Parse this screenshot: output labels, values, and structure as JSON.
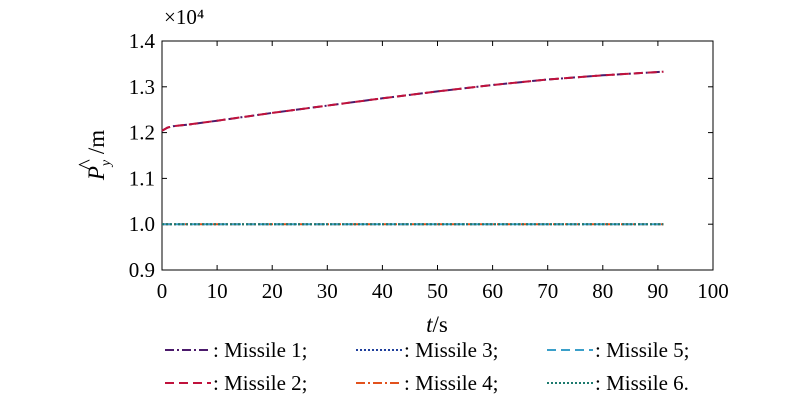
{
  "chart_data": {
    "type": "line",
    "title": "",
    "xlabel": "t/s",
    "ylabel": "P̂y/m",
    "y_multiplier": "×10⁴",
    "xlim": [
      0,
      100
    ],
    "ylim": [
      0.9,
      1.4
    ],
    "xticks": [
      0,
      10,
      20,
      30,
      40,
      50,
      60,
      70,
      80,
      90,
      100
    ],
    "yticks": [
      0.9,
      1.0,
      1.1,
      1.2,
      1.3,
      1.4
    ],
    "ytick_labels": [
      "0.9",
      "1.0",
      "1.1",
      "1.2",
      "1.3",
      "1.4"
    ],
    "grid": false,
    "legend_position": "bottom",
    "x": [
      0,
      1,
      2,
      5,
      10,
      20,
      30,
      40,
      50,
      60,
      70,
      80,
      91
    ],
    "series": [
      {
        "name": "Missile 1;",
        "color": "#4b1a6b",
        "style": "dash-dot",
        "values": [
          1.204,
          1.211,
          1.214,
          1.218,
          1.226,
          1.243,
          1.259,
          1.275,
          1.29,
          1.304,
          1.316,
          1.325,
          1.333
        ]
      },
      {
        "name": "Missile 2;",
        "color": "#c0123c",
        "style": "dash",
        "values": [
          1.204,
          1.211,
          1.214,
          1.218,
          1.226,
          1.243,
          1.259,
          1.275,
          1.29,
          1.304,
          1.316,
          1.325,
          1.333
        ]
      },
      {
        "name": "Missile 3;",
        "color": "#1f3f9c",
        "style": "dot",
        "values": [
          1.0,
          1.0,
          1.0,
          1.0,
          1.0,
          1.0,
          1.0,
          1.0,
          1.0,
          1.0,
          1.0,
          1.0,
          1.0
        ]
      },
      {
        "name": "Missile 4;",
        "color": "#e2521d",
        "style": "dash-dot",
        "values": [
          1.0,
          1.0,
          1.0,
          1.0,
          1.0,
          1.0,
          1.0,
          1.0,
          1.0,
          1.0,
          1.0,
          1.0,
          1.0
        ]
      },
      {
        "name": "Missile 5;",
        "color": "#3a9fc9",
        "style": "dash",
        "values": [
          1.0,
          1.0,
          1.0,
          1.0,
          1.0,
          1.0,
          1.0,
          1.0,
          1.0,
          1.0,
          1.0,
          1.0,
          1.0
        ]
      },
      {
        "name": "Missile 6.",
        "color": "#1c7a6e",
        "style": "dot",
        "values": [
          1.0,
          1.0,
          1.0,
          1.0,
          1.0,
          1.0,
          1.0,
          1.0,
          1.0,
          1.0,
          1.0,
          1.0,
          1.0
        ]
      }
    ]
  }
}
